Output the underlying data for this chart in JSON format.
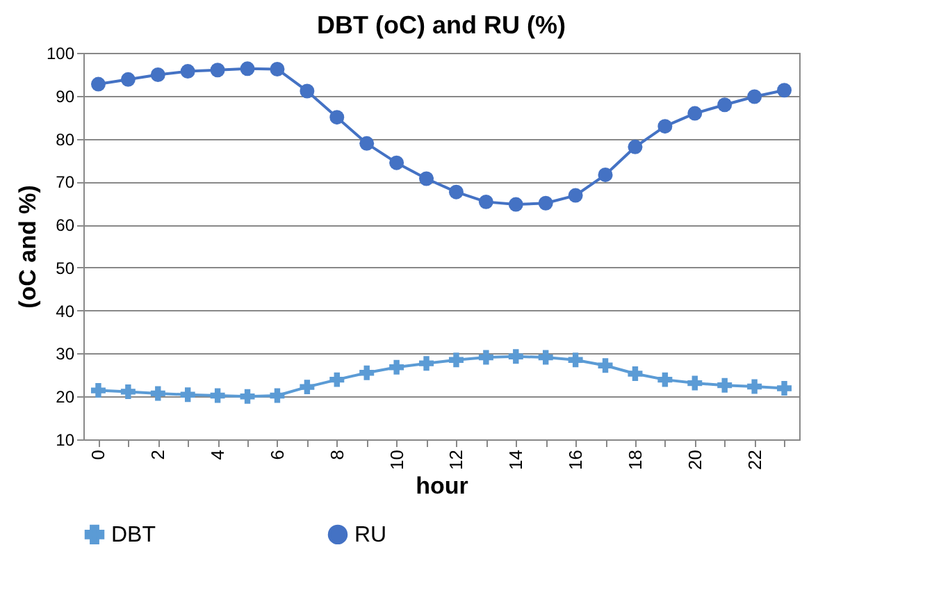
{
  "chart_data": {
    "type": "line",
    "title": "DBT (oC) and RU (%)",
    "xlabel": "hour",
    "ylabel": "(oC and %)",
    "categories": [
      "0",
      null,
      "2",
      null,
      "4",
      null,
      "6",
      null,
      "8",
      null,
      "10",
      null,
      "12",
      null,
      "14",
      null,
      "16",
      null,
      "18",
      null,
      "20",
      null,
      "22",
      null
    ],
    "series": [
      {
        "name": "DBT",
        "color": "#5b9bd5",
        "marker": "cross",
        "values": [
          21.4,
          21.1,
          20.7,
          20.4,
          20.2,
          20.0,
          20.2,
          22.2,
          23.9,
          25.5,
          26.8,
          27.7,
          28.5,
          29.1,
          29.3,
          29.1,
          28.5,
          27.2,
          25.3,
          23.9,
          23.1,
          22.6,
          22.3,
          21.9
        ]
      },
      {
        "name": "RU",
        "color": "#4472c4",
        "marker": "circle",
        "values": [
          92.7,
          93.8,
          94.9,
          95.7,
          96.0,
          96.3,
          96.2,
          91.1,
          85.0,
          78.9,
          74.4,
          70.7,
          67.6,
          65.3,
          64.7,
          65.0,
          66.8,
          71.6,
          78.1,
          82.9,
          85.9,
          87.9,
          89.8,
          91.3
        ]
      }
    ],
    "ylim": [
      10,
      100
    ],
    "yticks": [
      10,
      20,
      30,
      40,
      50,
      60,
      70,
      80,
      90,
      100
    ],
    "grid": "y",
    "legend": "bottom",
    "line_style": "solid"
  }
}
